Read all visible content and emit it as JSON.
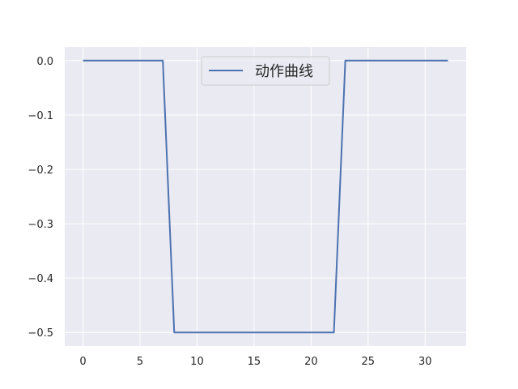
{
  "chart_data": {
    "type": "line",
    "title": "",
    "xlabel": "",
    "ylabel": "",
    "xlim": [
      -1.6,
      33.6
    ],
    "ylim": [
      -0.525,
      0.025
    ],
    "xticks": [
      0,
      5,
      10,
      15,
      20,
      25,
      30
    ],
    "xtick_labels": [
      "0",
      "5",
      "10",
      "15",
      "20",
      "25",
      "30"
    ],
    "yticks": [
      0.0,
      -0.1,
      -0.2,
      -0.3,
      -0.4,
      -0.5
    ],
    "ytick_labels": [
      "0.0",
      "−0.1",
      "−0.2",
      "−0.3",
      "−0.4",
      "−0.5"
    ],
    "grid": true,
    "legend_position": "top-center",
    "series": [
      {
        "name": "动作曲线",
        "color": "#4c72b0",
        "x": [
          0,
          1,
          2,
          3,
          4,
          5,
          6,
          7,
          8,
          9,
          10,
          11,
          12,
          13,
          14,
          15,
          16,
          17,
          18,
          19,
          20,
          21,
          22,
          23,
          24,
          25,
          26,
          27,
          28,
          29,
          30,
          31,
          32
        ],
        "values": [
          0,
          0,
          0,
          0,
          0,
          0,
          0,
          0,
          -0.5,
          -0.5,
          -0.5,
          -0.5,
          -0.5,
          -0.5,
          -0.5,
          -0.5,
          -0.5,
          -0.5,
          -0.5,
          -0.5,
          -0.5,
          -0.5,
          -0.5,
          0,
          0,
          0,
          0,
          0,
          0,
          0,
          0,
          0,
          0
        ]
      }
    ],
    "colors": {
      "plot_background": "#eaeaf2",
      "grid": "#ffffff",
      "line": "#4c72b0"
    }
  }
}
